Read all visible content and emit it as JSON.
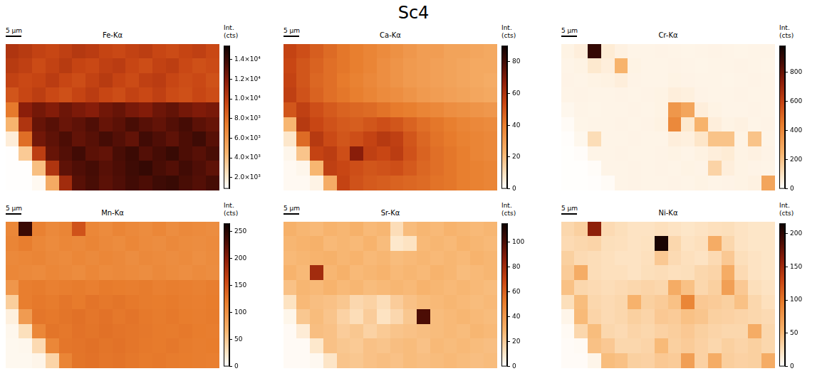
{
  "title": "Sc4",
  "chart_data": [
    {
      "type": "heatmap",
      "title": "Fe-Kα",
      "scalebar": "5 µm",
      "tick_labels": false,
      "colorbar": {
        "label": "Int. (cts)",
        "range": [
          850,
          15400
        ],
        "ticks": [
          {
            "value": 2000,
            "label": "2.0×10³"
          },
          {
            "value": 4000,
            "label": "4.0×10³"
          },
          {
            "value": 6000,
            "label": "6.0×10³"
          },
          {
            "value": 8000,
            "label": "8.0×10³"
          },
          {
            "value": 10000,
            "label": "1.0×10⁴"
          },
          {
            "value": 12000,
            "label": "1.2×10⁴"
          },
          {
            "value": 14000,
            "label": "1.4×10⁴"
          }
        ]
      },
      "cells": [
        [
          10500,
          10200,
          9800,
          9600,
          9900,
          10300,
          10100,
          9700,
          9500,
          9800,
          10000,
          9600,
          9400,
          9700,
          9900,
          9500
        ],
        [
          10200,
          9900,
          9400,
          9800,
          10200,
          9700,
          9500,
          9900,
          10100,
          9600,
          9300,
          9800,
          10000,
          9500,
          9200,
          9400
        ],
        [
          9800,
          9500,
          9700,
          10100,
          9600,
          9300,
          9800,
          10200,
          9700,
          9400,
          9900,
          10100,
          9600,
          9300,
          9500,
          9100
        ],
        [
          9000,
          9600,
          10000,
          9500,
          9200,
          9700,
          10100,
          9600,
          9300,
          9800,
          9500,
          9900,
          9400,
          9200,
          9600,
          9300
        ],
        [
          7500,
          11800,
          12400,
          12000,
          12600,
          12200,
          11900,
          12500,
          12800,
          12300,
          12000,
          12600,
          12900,
          12400,
          12100,
          12300
        ],
        [
          4500,
          10500,
          12800,
          13200,
          12700,
          13000,
          13400,
          12800,
          13100,
          13600,
          13200,
          12900,
          13300,
          13700,
          13100,
          12800
        ],
        [
          1800,
          8000,
          12500,
          13000,
          13500,
          12900,
          13200,
          13700,
          13300,
          12900,
          13800,
          13400,
          13000,
          13500,
          13900,
          13200
        ],
        [
          900,
          3500,
          10000,
          12800,
          13300,
          13800,
          13100,
          12900,
          13600,
          14000,
          13300,
          13700,
          14100,
          13500,
          13200,
          13600
        ],
        [
          900,
          900,
          4000,
          10500,
          13000,
          13400,
          13700,
          13200,
          13500,
          13900,
          14200,
          13600,
          13300,
          13800,
          13400,
          13000
        ],
        [
          900,
          900,
          1200,
          5000,
          11000,
          13200,
          13600,
          13100,
          13400,
          13800,
          13500,
          13900,
          14100,
          13600,
          13300,
          13700
        ]
      ]
    },
    {
      "type": "heatmap",
      "title": "Ca-Kα",
      "scalebar": "5 µm",
      "tick_labels": false,
      "colorbar": {
        "label": "Int. (cts)",
        "range": [
          0,
          90
        ],
        "ticks": [
          0,
          20,
          40,
          60,
          80
        ]
      },
      "cells": [
        [
          55,
          52,
          48,
          45,
          42,
          40,
          38,
          36,
          34,
          32,
          30,
          30,
          28,
          28,
          27,
          26
        ],
        [
          54,
          50,
          47,
          44,
          42,
          40,
          38,
          35,
          33,
          31,
          30,
          29,
          28,
          27,
          26,
          26
        ],
        [
          55,
          50,
          46,
          44,
          41,
          39,
          37,
          35,
          33,
          31,
          30,
          29,
          28,
          27,
          26,
          25
        ],
        [
          56,
          51,
          47,
          44,
          42,
          40,
          38,
          36,
          35,
          33,
          31,
          30,
          29,
          28,
          27,
          26
        ],
        [
          50,
          56,
          52,
          49,
          47,
          46,
          45,
          43,
          41,
          40,
          38,
          37,
          35,
          34,
          33,
          32
        ],
        [
          22,
          58,
          54,
          51,
          49,
          48,
          50,
          52,
          50,
          47,
          44,
          42,
          40,
          38,
          37,
          36
        ],
        [
          8,
          45,
          58,
          53,
          50,
          52,
          55,
          58,
          56,
          50,
          46,
          43,
          41,
          39,
          38,
          37
        ],
        [
          3,
          18,
          55,
          57,
          52,
          68,
          56,
          54,
          57,
          51,
          47,
          44,
          42,
          40,
          38,
          37
        ],
        [
          2,
          3,
          22,
          56,
          54,
          52,
          50,
          51,
          52,
          49,
          46,
          44,
          42,
          40,
          39,
          38
        ],
        [
          2,
          2,
          4,
          25,
          55,
          51,
          49,
          48,
          47,
          46,
          45,
          43,
          42,
          40,
          39,
          38
        ]
      ]
    },
    {
      "type": "heatmap",
      "title": "Cr-Kα",
      "scalebar": "5 µm",
      "tick_labels": false,
      "colorbar": {
        "label": "Int. (cts)",
        "range": [
          0,
          980
        ],
        "ticks": [
          0,
          200,
          400,
          600,
          800
        ]
      },
      "cells": [
        [
          45,
          60,
          900,
          70,
          50,
          40,
          40,
          42,
          40,
          38,
          40,
          42,
          40,
          38,
          40,
          40
        ],
        [
          40,
          45,
          80,
          60,
          250,
          45,
          40,
          40,
          42,
          40,
          38,
          40,
          40,
          42,
          40,
          38
        ],
        [
          42,
          40,
          45,
          48,
          60,
          42,
          40,
          40,
          45,
          42,
          40,
          40,
          38,
          40,
          42,
          40
        ],
        [
          40,
          42,
          40,
          40,
          42,
          40,
          42,
          45,
          60,
          55,
          42,
          40,
          40,
          42,
          40,
          40
        ],
        [
          30,
          40,
          38,
          40,
          40,
          42,
          40,
          45,
          350,
          300,
          60,
          45,
          40,
          40,
          42,
          40
        ],
        [
          15,
          38,
          40,
          40,
          42,
          40,
          42,
          48,
          400,
          80,
          250,
          60,
          45,
          50,
          40,
          42
        ],
        [
          6,
          30,
          120,
          40,
          40,
          42,
          40,
          40,
          60,
          55,
          90,
          200,
          200,
          45,
          200,
          40
        ],
        [
          5,
          10,
          40,
          40,
          42,
          40,
          40,
          42,
          45,
          40,
          48,
          60,
          70,
          45,
          50,
          42
        ],
        [
          5,
          5,
          12,
          40,
          40,
          42,
          40,
          42,
          40,
          45,
          42,
          150,
          60,
          45,
          42,
          40
        ],
        [
          5,
          5,
          6,
          15,
          40,
          42,
          40,
          40,
          42,
          40,
          45,
          40,
          42,
          45,
          50,
          300
        ]
      ]
    },
    {
      "type": "heatmap",
      "title": "Mn-Kα",
      "scalebar": "5 µm",
      "tick_labels": false,
      "colorbar": {
        "label": "Int. (cts)",
        "range": [
          0,
          265
        ],
        "ticks": [
          0,
          50,
          100,
          150,
          200,
          250
        ]
      },
      "cells": [
        [
          110,
          240,
          115,
          108,
          112,
          150,
          110,
          106,
          112,
          108,
          105,
          110,
          104,
          108,
          106,
          104
        ],
        [
          112,
          118,
          110,
          106,
          110,
          108,
          112,
          108,
          105,
          110,
          106,
          104,
          108,
          105,
          104,
          106
        ],
        [
          108,
          110,
          112,
          108,
          106,
          110,
          107,
          110,
          108,
          104,
          108,
          106,
          104,
          106,
          102,
          105
        ],
        [
          110,
          108,
          106,
          110,
          108,
          105,
          110,
          106,
          108,
          106,
          104,
          108,
          105,
          103,
          106,
          104
        ],
        [
          95,
          118,
          120,
          116,
          118,
          120,
          117,
          121,
          119,
          118,
          120,
          116,
          118,
          117,
          115,
          118
        ],
        [
          45,
          118,
          122,
          120,
          124,
          121,
          126,
          123,
          125,
          122,
          120,
          119,
          121,
          118,
          117,
          119
        ],
        [
          15,
          90,
          124,
          122,
          125,
          128,
          124,
          127,
          123,
          126,
          122,
          120,
          122,
          119,
          118,
          120
        ],
        [
          8,
          30,
          110,
          125,
          123,
          127,
          125,
          128,
          126,
          124,
          123,
          121,
          120,
          122,
          119,
          118
        ],
        [
          7,
          8,
          35,
          110,
          124,
          126,
          128,
          125,
          127,
          124,
          122,
          121,
          123,
          120,
          118,
          119
        ],
        [
          7,
          7,
          10,
          40,
          112,
          125,
          127,
          124,
          126,
          123,
          121,
          122,
          120,
          119,
          118,
          117
        ]
      ]
    },
    {
      "type": "heatmap",
      "title": "Sr-Kα",
      "scalebar": "5 µm",
      "tick_labels": false,
      "colorbar": {
        "label": "Int. (cts)",
        "range": [
          0,
          115
        ],
        "ticks": [
          0,
          20,
          40,
          60,
          80,
          100
        ]
      },
      "cells": [
        [
          30,
          28,
          27,
          29,
          28,
          30,
          27,
          28,
          14,
          26,
          28,
          27,
          29,
          28,
          27,
          28
        ],
        [
          28,
          29,
          30,
          27,
          28,
          27,
          29,
          26,
          10,
          12,
          27,
          28,
          27,
          29,
          28,
          27
        ],
        [
          27,
          28,
          29,
          30,
          28,
          29,
          27,
          28,
          26,
          27,
          28,
          27,
          28,
          27,
          29,
          28
        ],
        [
          29,
          27,
          80,
          28,
          30,
          27,
          28,
          29,
          27,
          28,
          27,
          29,
          28,
          26,
          27,
          28
        ],
        [
          24,
          28,
          27,
          29,
          27,
          28,
          26,
          27,
          28,
          27,
          29,
          28,
          27,
          28,
          27,
          26
        ],
        [
          12,
          27,
          25,
          24,
          22,
          16,
          18,
          14,
          20,
          24,
          26,
          27,
          28,
          27,
          26,
          27
        ],
        [
          4,
          22,
          26,
          23,
          18,
          14,
          20,
          12,
          16,
          22,
          100,
          26,
          27,
          28,
          27,
          26
        ],
        [
          2,
          8,
          25,
          24,
          20,
          22,
          18,
          21,
          23,
          24,
          25,
          26,
          27,
          26,
          28,
          27
        ],
        [
          2,
          2,
          10,
          24,
          22,
          21,
          24,
          23,
          25,
          26,
          24,
          27,
          26,
          27,
          26,
          25
        ],
        [
          2,
          2,
          3,
          11,
          23,
          22,
          24,
          25,
          24,
          26,
          25,
          26,
          27,
          26,
          25,
          26
        ]
      ]
    },
    {
      "type": "heatmap",
      "title": "Ni-Kα",
      "scalebar": "5 µm",
      "tick_labels": false,
      "colorbar": {
        "label": "Int. (cts)",
        "range": [
          0,
          215
        ],
        "ticks": [
          0,
          50,
          100,
          150,
          200
        ]
      },
      "cells": [
        [
          30,
          35,
          160,
          28,
          25,
          22,
          22,
          24,
          22,
          20,
          22,
          24,
          25,
          22,
          20,
          20
        ],
        [
          28,
          30,
          32,
          25,
          24,
          22,
          23,
          210,
          30,
          22,
          24,
          60,
          30,
          22,
          20,
          20
        ],
        [
          35,
          28,
          26,
          24,
          22,
          22,
          24,
          40,
          28,
          24,
          22,
          28,
          40,
          25,
          22,
          20
        ],
        [
          38,
          60,
          26,
          24,
          24,
          22,
          25,
          26,
          24,
          25,
          30,
          32,
          60,
          28,
          22,
          20
        ],
        [
          45,
          30,
          28,
          26,
          28,
          30,
          32,
          30,
          60,
          45,
          30,
          35,
          70,
          40,
          25,
          22
        ],
        [
          25,
          48,
          30,
          28,
          30,
          55,
          35,
          38,
          45,
          90,
          40,
          38,
          35,
          45,
          30,
          24
        ],
        [
          8,
          50,
          32,
          28,
          30,
          35,
          32,
          40,
          38,
          45,
          42,
          35,
          34,
          32,
          30,
          28
        ],
        [
          4,
          30,
          48,
          30,
          28,
          32,
          30,
          34,
          36,
          40,
          35,
          32,
          30,
          30,
          60,
          30
        ],
        [
          3,
          4,
          45,
          40,
          30,
          30,
          32,
          50,
          35,
          38,
          34,
          30,
          35,
          32,
          35,
          30
        ],
        [
          3,
          3,
          8,
          48,
          45,
          35,
          34,
          40,
          38,
          70,
          34,
          60,
          36,
          34,
          35,
          60
        ]
      ]
    }
  ]
}
